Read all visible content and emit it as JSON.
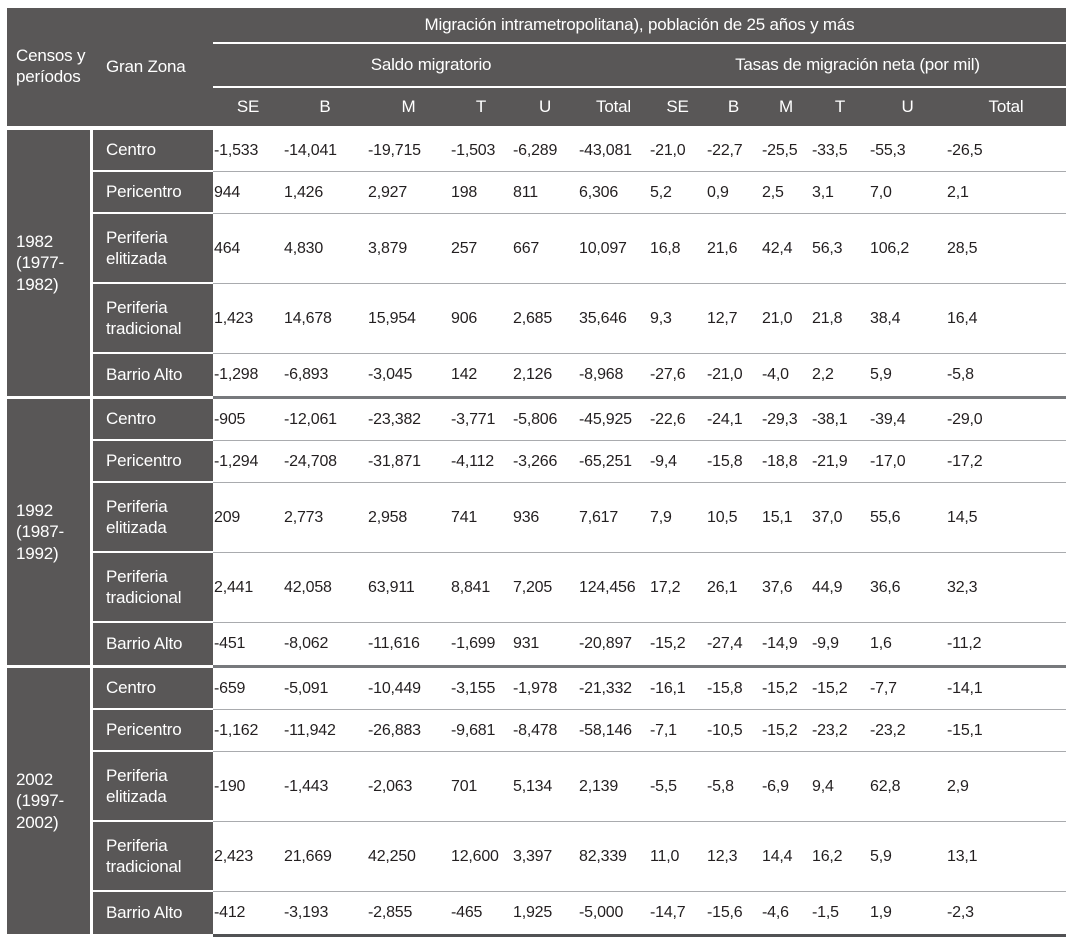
{
  "table": {
    "title": "Migración intrametropolitana), población de 25 años y más",
    "censos_header": "Censos y períodos",
    "gran_zona_header": "Gran Zona",
    "groups": [
      {
        "label": "Saldo migratorio",
        "columns": [
          "SE",
          "B",
          "M",
          "T",
          "U",
          "Total"
        ]
      },
      {
        "label": "Tasas de migración neta (por mil)",
        "columns": [
          "SE",
          "B",
          "M",
          "T",
          "U",
          "Total"
        ]
      }
    ],
    "periods": [
      {
        "label": "1982\n(1977-\n1982)",
        "rows": [
          {
            "zone": "Centro",
            "values": [
              "-1,533",
              "-14,041",
              "-19,715",
              "-1,503",
              "-6,289",
              "-43,081",
              "-21,0",
              "-22,7",
              "-25,5",
              "-33,5",
              "-55,3",
              "-26,5"
            ]
          },
          {
            "zone": "Pericentro",
            "values": [
              "944",
              "1,426",
              "2,927",
              "198",
              "811",
              "6,306",
              "5,2",
              "0,9",
              "2,5",
              "3,1",
              "7,0",
              "2,1"
            ]
          },
          {
            "zone": "Periferia elitizada",
            "values": [
              "464",
              "4,830",
              "3,879",
              "257",
              "667",
              "10,097",
              "16,8",
              "21,6",
              "42,4",
              "56,3",
              "106,2",
              "28,5"
            ]
          },
          {
            "zone": "Periferia tradicional",
            "values": [
              "1,423",
              "14,678",
              "15,954",
              "906",
              "2,685",
              "35,646",
              "9,3",
              "12,7",
              "21,0",
              "21,8",
              "38,4",
              "16,4"
            ]
          },
          {
            "zone": "Barrio Alto",
            "values": [
              "-1,298",
              "-6,893",
              "-3,045",
              "142",
              "2,126",
              "-8,968",
              "-27,6",
              "-21,0",
              "-4,0",
              "2,2",
              "5,9",
              "-5,8"
            ]
          }
        ]
      },
      {
        "label": "1992\n(1987-\n1992)",
        "rows": [
          {
            "zone": "Centro",
            "values": [
              "-905",
              "-12,061",
              "-23,382",
              "-3,771",
              "-5,806",
              "-45,925",
              "-22,6",
              "-24,1",
              "-29,3",
              "-38,1",
              "-39,4",
              "-29,0"
            ]
          },
          {
            "zone": "Pericentro",
            "values": [
              "-1,294",
              "-24,708",
              "-31,871",
              "-4,112",
              "-3,266",
              "-65,251",
              "-9,4",
              "-15,8",
              "-18,8",
              "-21,9",
              "-17,0",
              "-17,2"
            ]
          },
          {
            "zone": "Periferia elitizada",
            "values": [
              "209",
              "2,773",
              "2,958",
              "741",
              "936",
              "7,617",
              "7,9",
              "10,5",
              "15,1",
              "37,0",
              "55,6",
              "14,5"
            ]
          },
          {
            "zone": "Periferia tradicional",
            "values": [
              "2,441",
              "42,058",
              "63,911",
              "8,841",
              "7,205",
              "124,456",
              "17,2",
              "26,1",
              "37,6",
              "44,9",
              "36,6",
              "32,3"
            ]
          },
          {
            "zone": "Barrio Alto",
            "values": [
              "-451",
              "-8,062",
              "-11,616",
              "-1,699",
              "931",
              "-20,897",
              "-15,2",
              "-27,4",
              "-14,9",
              "-9,9",
              "1,6",
              "-11,2"
            ]
          }
        ]
      },
      {
        "label": "2002\n(1997-\n2002)",
        "rows": [
          {
            "zone": "Centro",
            "values": [
              "-659",
              "-5,091",
              "-10,449",
              "-3,155",
              "-1,978",
              "-21,332",
              "-16,1",
              "-15,8",
              "-15,2",
              "-15,2",
              "-7,7",
              "-14,1"
            ]
          },
          {
            "zone": "Pericentro",
            "values": [
              "-1,162",
              "-11,942",
              "-26,883",
              "-9,681",
              "-8,478",
              "-58,146",
              "-7,1",
              "-10,5",
              "-15,2",
              "-23,2",
              "-23,2",
              "-15,1"
            ]
          },
          {
            "zone": "Periferia elitizada",
            "values": [
              "-190",
              "-1,443",
              "-2,063",
              "701",
              "5,134",
              "2,139",
              "-5,5",
              "-5,8",
              "-6,9",
              "9,4",
              "62,8",
              "2,9"
            ]
          },
          {
            "zone": "Periferia tradicional",
            "values": [
              "2,423",
              "21,669",
              "42,250",
              "12,600",
              "3,397",
              "82,339",
              "11,0",
              "12,3",
              "14,4",
              "16,2",
              "5,9",
              "13,1"
            ]
          },
          {
            "zone": "Barrio Alto",
            "values": [
              "-412",
              "-3,193",
              "-2,855",
              "-465",
              "1,925",
              "-5,000",
              "-14,7",
              "-15,6",
              "-4,6",
              "-1,5",
              "1,9",
              "-2,3"
            ]
          }
        ]
      }
    ],
    "colors": {
      "header_bg": "#595757",
      "data_text": "#231f20",
      "row_line": "#a9abae",
      "period_line": "#77797c",
      "bottom_line": "#515254"
    }
  }
}
